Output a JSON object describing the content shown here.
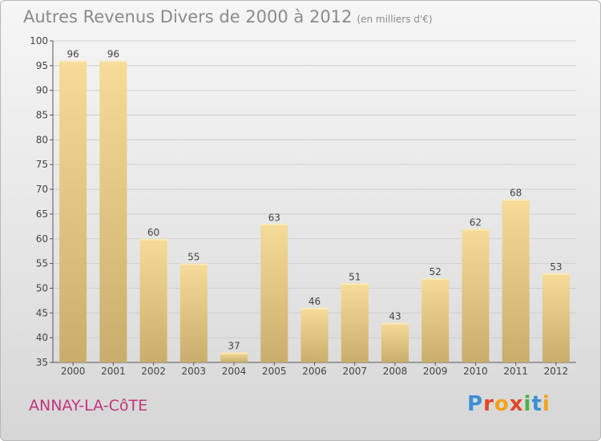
{
  "title": "Autres Revenus Divers de 2000 à 2012",
  "subtitle": "(en milliers d'€)",
  "commune": "ANNAY-LA-CôTE",
  "logo": {
    "letters": [
      {
        "ch": "P",
        "color": "#3c8fd6"
      },
      {
        "ch": "r",
        "color": "#e0472b"
      },
      {
        "ch": "o",
        "color": "#f4a11c"
      },
      {
        "ch": "x",
        "color": "#e0472b"
      },
      {
        "ch": "i",
        "color": "#4bb04b"
      },
      {
        "ch": "t",
        "color": "#3c8fd6"
      },
      {
        "ch": "i",
        "color": "#f4a11c"
      }
    ]
  },
  "chart_data": {
    "type": "bar",
    "categories": [
      "2000",
      "2001",
      "2002",
      "2003",
      "2004",
      "2005",
      "2006",
      "2007",
      "2008",
      "2009",
      "2010",
      "2011",
      "2012"
    ],
    "values": [
      96,
      96,
      60,
      55,
      37,
      63,
      46,
      51,
      43,
      52,
      62,
      68,
      53
    ],
    "ylim": [
      35,
      100
    ],
    "yticks": [
      35,
      40,
      45,
      50,
      55,
      60,
      65,
      70,
      75,
      80,
      85,
      90,
      95,
      100
    ],
    "grid": true,
    "bar_color": "#e9cf8a"
  }
}
